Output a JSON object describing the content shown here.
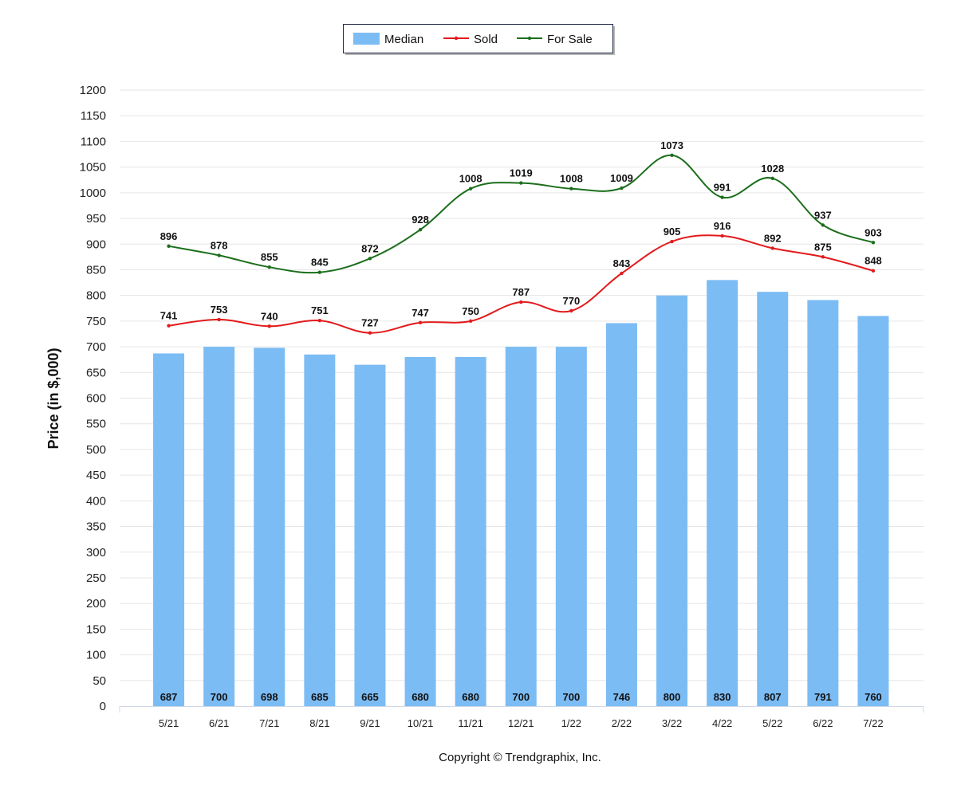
{
  "chart_data": {
    "type": "bar",
    "categories": [
      "5/21",
      "6/21",
      "7/21",
      "8/21",
      "9/21",
      "10/21",
      "11/21",
      "12/21",
      "1/22",
      "2/22",
      "3/22",
      "4/22",
      "5/22",
      "6/22",
      "7/22"
    ],
    "series": [
      {
        "name": "Median",
        "type": "bar",
        "color": "#7cbcf4",
        "values": [
          687,
          700,
          698,
          685,
          665,
          680,
          680,
          700,
          700,
          746,
          800,
          830,
          807,
          791,
          760
        ]
      },
      {
        "name": "Sold",
        "type": "line",
        "color": "#e31a1c",
        "values": [
          741,
          753,
          740,
          751,
          727,
          747,
          750,
          787,
          770,
          843,
          905,
          916,
          892,
          875,
          848
        ]
      },
      {
        "name": "For Sale",
        "type": "line",
        "color": "#1b6e1b",
        "values": [
          896,
          878,
          855,
          845,
          872,
          928,
          1008,
          1019,
          1008,
          1009,
          1073,
          991,
          1028,
          937,
          903
        ]
      }
    ],
    "ylabel": "Price (in $,000)",
    "xlabel": "",
    "ylim": [
      0,
      1200
    ],
    "ytick_step": 50,
    "grid": true,
    "legend_position": "top-center"
  },
  "footer": {
    "copyright": "Copyright © Trendgraphix, Inc."
  }
}
